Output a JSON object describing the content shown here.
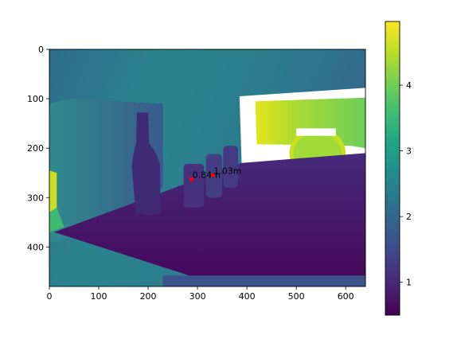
{
  "chart_data": {
    "type": "heatmap",
    "title": "",
    "xlabel": "",
    "ylabel": "",
    "xlim": [
      0,
      640
    ],
    "ylim": [
      480,
      0
    ],
    "x_ticks": [
      "0",
      "100",
      "200",
      "300",
      "400",
      "500",
      "600"
    ],
    "y_ticks": [
      "0",
      "100",
      "200",
      "300",
      "400"
    ],
    "colormap": "viridis",
    "colorbar": {
      "range": [
        0.5,
        4.97
      ],
      "ticks": [
        "1",
        "2",
        "3",
        "4"
      ]
    },
    "annotations": [
      {
        "label": "0.84m",
        "x": 288,
        "y": 263,
        "marker_color": "#ff0000"
      },
      {
        "label": "1.03m",
        "x": 331,
        "y": 255,
        "marker_color": "#ff0000"
      }
    ],
    "scene_regions": [
      {
        "kind": "wall",
        "depth": 1.9
      },
      {
        "kind": "window",
        "depth": 4.5
      },
      {
        "kind": "table",
        "depth": 0.65
      },
      {
        "kind": "bottle",
        "depth": 0.8
      }
    ]
  }
}
